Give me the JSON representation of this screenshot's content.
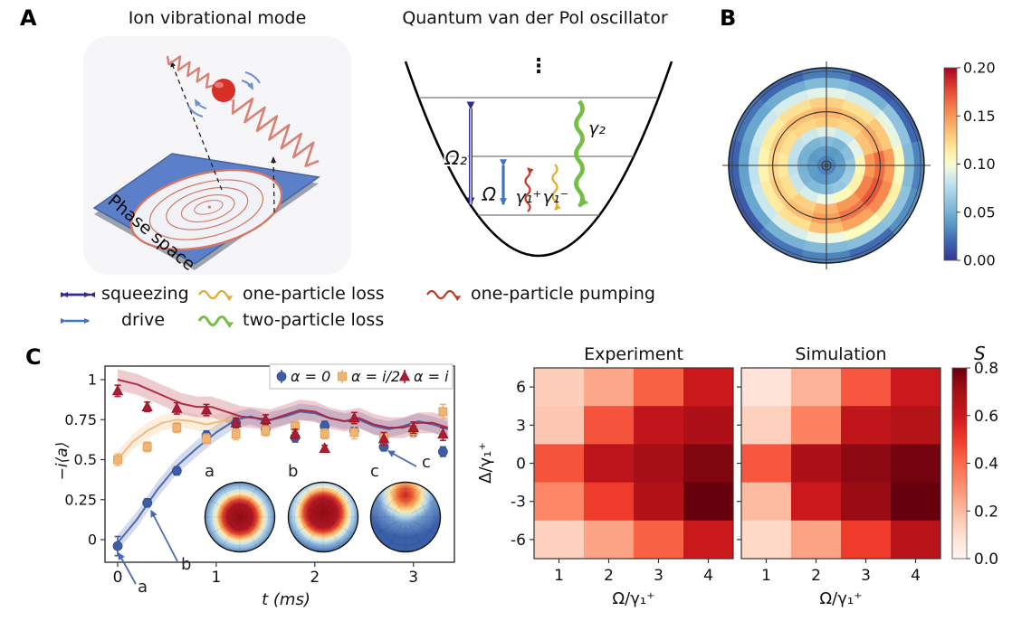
{
  "figure": {
    "panel_a": {
      "label": "A",
      "left_title": "Ion vibrational mode",
      "right_title": "Quantum van der Pol oscillator",
      "phase_space_label": "Phase space",
      "well_labels": {
        "omega2": "Ω₂",
        "omega": "Ω",
        "gamma1_plus": "γ₁⁺",
        "gamma1_minus": "γ₁⁻",
        "gamma2": "γ₂",
        "dots": "⋮"
      }
    },
    "panel_b": {
      "label": "B"
    },
    "panel_c": {
      "label": "C"
    },
    "legend": {
      "items": [
        {
          "label": "squeezing",
          "kind": "double-arrow",
          "color": "#312b8d",
          "row": 1
        },
        {
          "label": "one-particle loss",
          "kind": "wavy-arrow",
          "color": "#e2aa2e",
          "row": 1
        },
        {
          "label": "one-particle pumping",
          "kind": "wavy-arrow",
          "color": "#c23a25",
          "row": 1
        },
        {
          "label": "drive",
          "kind": "double-arrow",
          "color": "#4472c4",
          "row": 2
        },
        {
          "label": "two-particle loss",
          "kind": "wavy-arrow-thick",
          "color": "#72bf44",
          "row": 2
        }
      ]
    },
    "palette": {
      "alpha0_blue": "#3d5da9",
      "alpha_i2_orange": "#f2b472",
      "alpha_i_red": "#ad1c32",
      "annotation_blue": "#4a69b4",
      "spring_red": "#d98175",
      "ball_red": "#d93025",
      "platform_blue": "#5b80c9"
    }
  },
  "chart_data": [
    {
      "id": "wigner_polar_b",
      "type": "heatmap",
      "projection": "polar",
      "colormap": "RdYlBu_r",
      "vmin": 0.0,
      "vmax": 0.2,
      "colorbar_ticks": [
        "0.20",
        "0.15",
        "0.10",
        "0.05",
        "0.00"
      ],
      "n_sectors": 12,
      "sector_start_deg": -15,
      "ring_values": [
        [
          0.03,
          0.03,
          0.03,
          0.03,
          0.03,
          0.03,
          0.03,
          0.03,
          0.03,
          0.03,
          0.03,
          0.03
        ],
        [
          0.042,
          0.04,
          0.038,
          0.04,
          0.04,
          0.038,
          0.04,
          0.04,
          0.038,
          0.04,
          0.042,
          0.044
        ],
        [
          0.064,
          0.058,
          0.052,
          0.056,
          0.052,
          0.05,
          0.05,
          0.052,
          0.055,
          0.058,
          0.062,
          0.066
        ],
        [
          0.108,
          0.092,
          0.084,
          0.09,
          0.084,
          0.08,
          0.078,
          0.082,
          0.088,
          0.096,
          0.106,
          0.112
        ],
        [
          0.15,
          0.132,
          0.124,
          0.128,
          0.124,
          0.12,
          0.116,
          0.12,
          0.126,
          0.138,
          0.15,
          0.158
        ],
        [
          0.165,
          0.142,
          0.133,
          0.138,
          0.133,
          0.128,
          0.124,
          0.128,
          0.134,
          0.148,
          0.162,
          0.172
        ],
        [
          0.148,
          0.13,
          0.12,
          0.126,
          0.12,
          0.114,
          0.11,
          0.114,
          0.12,
          0.133,
          0.145,
          0.155
        ],
        [
          0.105,
          0.094,
          0.088,
          0.092,
          0.088,
          0.084,
          0.08,
          0.084,
          0.089,
          0.096,
          0.104,
          0.112
        ],
        [
          0.055,
          0.06,
          0.05,
          0.055,
          0.048,
          0.045,
          0.042,
          0.045,
          0.05,
          0.055,
          0.058,
          0.06
        ],
        [
          0.03,
          0.02,
          0.015,
          0.028,
          0.02,
          0.025,
          0.018,
          0.015,
          0.025,
          0.03,
          0.022,
          0.035
        ]
      ]
    },
    {
      "id": "timeseries_c",
      "type": "line",
      "xlabel": "t (ms)",
      "ylabel": "−i⟨a⟩",
      "xticks": [
        "0",
        "1",
        "2",
        "3"
      ],
      "xtick_vals": [
        0,
        1,
        2,
        3
      ],
      "yticks": [
        "0",
        "0.25",
        "0.5",
        "0.75",
        "1"
      ],
      "ytick_vals": [
        0,
        0.25,
        0.5,
        0.75,
        1
      ],
      "xlim": [
        -0.13,
        3.42
      ],
      "ylim": [
        -0.14,
        1.09
      ],
      "t": [
        0,
        0.3,
        0.6,
        0.9,
        1.2,
        1.5,
        1.8,
        2.1,
        2.4,
        2.7,
        3.0,
        3.3
      ],
      "series": [
        {
          "name": "α = 0",
          "marker": "circle",
          "color": "#3d5da9",
          "values": [
            -0.04,
            0.23,
            0.43,
            0.65,
            0.73,
            0.69,
            0.64,
            0.71,
            0.68,
            0.58,
            0.68,
            0.55
          ],
          "errors": [
            0.06,
            0.025,
            0.025,
            0.03,
            0.03,
            0.025,
            0.03,
            0.03,
            0.03,
            0.025,
            0.03,
            0.03
          ],
          "band_halfwidth": 0.05,
          "line": [
            [
              0,
              -0.02
            ],
            [
              0.2,
              0.13
            ],
            [
              0.4,
              0.31
            ],
            [
              0.6,
              0.46
            ],
            [
              0.8,
              0.57
            ],
            [
              1.0,
              0.67
            ],
            [
              1.2,
              0.75
            ],
            [
              1.35,
              0.77
            ],
            [
              1.5,
              0.74
            ],
            [
              1.7,
              0.77
            ],
            [
              1.85,
              0.8
            ],
            [
              2.0,
              0.79
            ],
            [
              2.15,
              0.76
            ],
            [
              2.3,
              0.74
            ],
            [
              2.45,
              0.75
            ],
            [
              2.6,
              0.71
            ],
            [
              2.75,
              0.69
            ],
            [
              2.9,
              0.71
            ],
            [
              3.05,
              0.74
            ],
            [
              3.2,
              0.72
            ],
            [
              3.35,
              0.69
            ]
          ]
        },
        {
          "name": "α = i/2",
          "marker": "square",
          "color": "#f2b472",
          "values": [
            0.5,
            0.58,
            0.7,
            0.63,
            0.66,
            0.68,
            0.71,
            0.66,
            0.67,
            0.64,
            0.68,
            0.8
          ],
          "errors": [
            0.035,
            0.03,
            0.03,
            0.03,
            0.035,
            0.03,
            0.03,
            0.03,
            0.04,
            0.035,
            0.04,
            0.045
          ],
          "band_halfwidth": 0.05,
          "line": [
            [
              0,
              0.5
            ],
            [
              0.15,
              0.61
            ],
            [
              0.3,
              0.68
            ],
            [
              0.45,
              0.73
            ],
            [
              0.6,
              0.75
            ],
            [
              0.75,
              0.74
            ],
            [
              0.9,
              0.72
            ],
            [
              1.05,
              0.74
            ],
            [
              1.2,
              0.76
            ]
          ]
        },
        {
          "name": "α = i",
          "marker": "triangle",
          "color": "#ad1c32",
          "values": [
            0.93,
            0.83,
            0.82,
            0.81,
            0.73,
            0.75,
            0.66,
            0.57,
            0.76,
            0.63,
            0.7,
            0.66
          ],
          "errors": [
            0.035,
            0.03,
            0.035,
            0.035,
            0.03,
            0.03,
            0.03,
            0.02,
            0.035,
            0.04,
            0.035,
            0.04
          ],
          "band_halfwidth": 0.065,
          "line": [
            [
              0,
              1.0
            ],
            [
              0.2,
              0.97
            ],
            [
              0.35,
              0.93
            ],
            [
              0.5,
              0.89
            ],
            [
              0.65,
              0.85
            ],
            [
              0.8,
              0.83
            ],
            [
              0.95,
              0.83
            ],
            [
              1.1,
              0.8
            ],
            [
              1.25,
              0.77
            ],
            [
              1.4,
              0.76
            ],
            [
              1.55,
              0.75
            ],
            [
              1.7,
              0.78
            ],
            [
              1.85,
              0.81
            ],
            [
              2.0,
              0.8
            ],
            [
              2.15,
              0.76
            ],
            [
              2.3,
              0.74
            ],
            [
              2.45,
              0.76
            ],
            [
              2.6,
              0.72
            ],
            [
              2.75,
              0.7
            ],
            [
              2.9,
              0.7
            ],
            [
              3.05,
              0.73
            ],
            [
              3.2,
              0.73
            ],
            [
              3.35,
              0.7
            ]
          ]
        }
      ],
      "annotations": [
        {
          "label": "a",
          "target_t": 0.0,
          "target_v": -0.04
        },
        {
          "label": "b",
          "target_t": 0.3,
          "target_v": 0.23
        },
        {
          "label": "c",
          "target_t": 2.7,
          "target_v": 0.58
        }
      ],
      "insets": [
        {
          "label": "a",
          "hotspot": "center"
        },
        {
          "label": "b",
          "hotspot": "center"
        },
        {
          "label": "c",
          "hotspot": "top"
        }
      ]
    },
    {
      "id": "heatmap_experiment",
      "type": "heatmap",
      "title": "Experiment",
      "xlabel": "Ω/γ₁⁺",
      "ylabel": "Δ/γ₁⁺",
      "xticks": [
        "1",
        "2",
        "3",
        "4"
      ],
      "yticks": [
        "6",
        "3",
        "0",
        "-3",
        "-6"
      ],
      "values": [
        [
          0.15,
          0.25,
          0.42,
          0.6
        ],
        [
          0.17,
          0.45,
          0.63,
          0.68
        ],
        [
          0.45,
          0.64,
          0.7,
          0.76
        ],
        [
          0.33,
          0.5,
          0.67,
          0.8
        ],
        [
          0.14,
          0.26,
          0.42,
          0.6
        ]
      ]
    },
    {
      "id": "heatmap_simulation",
      "type": "heatmap",
      "title": "Simulation",
      "xlabel": "Ω/γ₁⁺",
      "ylabel": "Δ/γ₁⁺",
      "xticks": [
        "1",
        "2",
        "3",
        "4"
      ],
      "yticks": [
        "6",
        "3",
        "0",
        "-3",
        "-6"
      ],
      "values": [
        [
          0.08,
          0.22,
          0.44,
          0.6
        ],
        [
          0.14,
          0.34,
          0.63,
          0.66
        ],
        [
          0.44,
          0.68,
          0.74,
          0.78
        ],
        [
          0.2,
          0.6,
          0.72,
          0.8
        ],
        [
          0.12,
          0.26,
          0.5,
          0.65
        ]
      ]
    }
  ],
  "s_colorbar": {
    "label": "S",
    "ticks": [
      "0.8",
      "0.6",
      "0.4",
      "0.2",
      "0.0"
    ],
    "vmin": 0.0,
    "vmax": 0.8,
    "colormap": "Reds"
  }
}
